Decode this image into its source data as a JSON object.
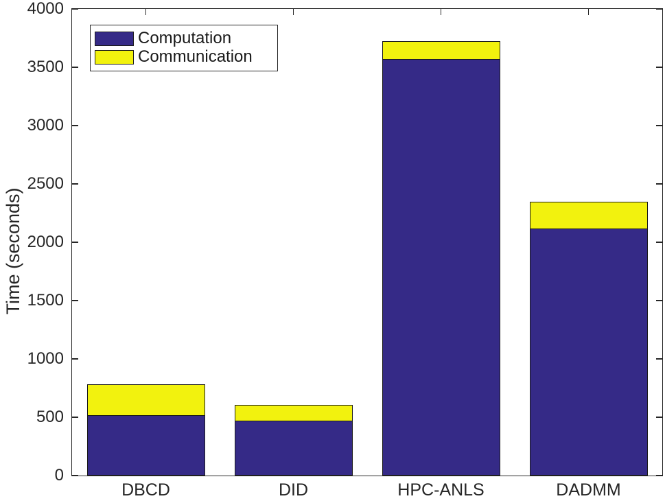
{
  "chart_data": {
    "type": "bar",
    "stacked": true,
    "title": "",
    "xlabel": "",
    "ylabel": "Time (seconds)",
    "categories": [
      "DBCD",
      "DID",
      "HPC-ANLS",
      "DADMM"
    ],
    "series": [
      {
        "name": "Computation",
        "color": "#352A87",
        "values": [
          515,
          470,
          3570,
          2120
        ]
      },
      {
        "name": "Communication",
        "color": "#F2F20E",
        "values": [
          265,
          135,
          155,
          230
        ]
      }
    ],
    "stack_totals": [
      780,
      605,
      3725,
      2350
    ],
    "ylim": [
      0,
      4000
    ],
    "yticks": [
      0,
      500,
      1000,
      1500,
      2000,
      2500,
      3000,
      3500,
      4000
    ],
    "grid": false,
    "legend_position": "top-left",
    "bar_width_fraction": 0.8
  },
  "colors": {
    "background": "#FFFFFF",
    "axis": "#262626",
    "text": "#262626",
    "bar_edge": "#1A1A1A"
  }
}
